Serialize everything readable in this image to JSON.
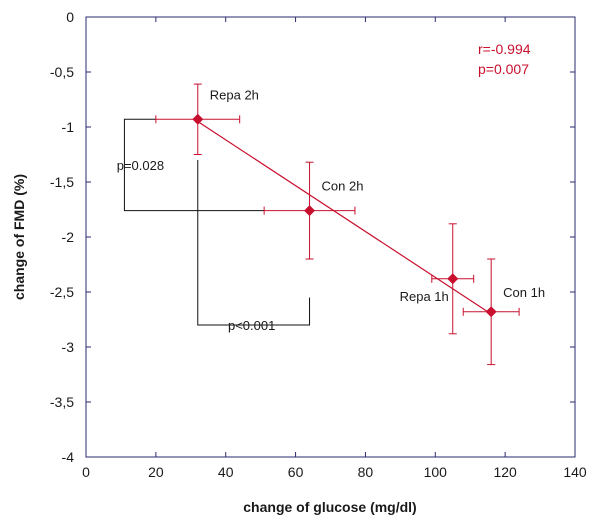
{
  "chart_data": {
    "type": "scatter",
    "title": "",
    "xlabel": "change of glucose (mg/dl)",
    "ylabel": "change of FMD (%)",
    "xlim": [
      0,
      140
    ],
    "ylim": [
      -4,
      0
    ],
    "x_ticks": [
      "0",
      "20",
      "40",
      "60",
      "80",
      "100",
      "120",
      "140"
    ],
    "y_ticks": [
      "0",
      "-0,5",
      "-1",
      "-1,5",
      "-2",
      "-2,5",
      "-3",
      "-3,5",
      "-4"
    ],
    "grid": false,
    "legend": "none",
    "points": [
      {
        "label": "Repa 2h",
        "x": 32,
        "y": -0.93,
        "x_err": 12,
        "y_err": 0.32
      },
      {
        "label": "Con 2h",
        "x": 64,
        "y": -1.76,
        "x_err": 13,
        "y_err": 0.44
      },
      {
        "label": "Repa 1h",
        "x": 105,
        "y": -2.38,
        "x_err": 6,
        "y_err": 0.5
      },
      {
        "label": "Con 1h",
        "x": 116,
        "y": -2.68,
        "x_err": 8,
        "y_err": 0.48
      }
    ],
    "fit_line": {
      "x": [
        32,
        116
      ],
      "y": [
        -0.95,
        -2.7
      ]
    },
    "stats": {
      "r": "r=-0.994",
      "p": "p=0.007"
    },
    "brackets": [
      {
        "label": "p=0.028",
        "orientation": "vertical",
        "x_at": 11,
        "from_y": -0.93,
        "to_y": -1.76,
        "end_x": [
          20,
          51
        ]
      },
      {
        "label": "p<0.001",
        "orientation": "horizontal",
        "y_at": -2.8,
        "from_x": 32,
        "to_x": 64,
        "end_y": [
          -1.3,
          -2.55
        ]
      }
    ],
    "colors": {
      "marker": "#c8102e",
      "axis": "#2a2a6e",
      "text": "#1a1a1a",
      "bracket": "#111111"
    }
  }
}
